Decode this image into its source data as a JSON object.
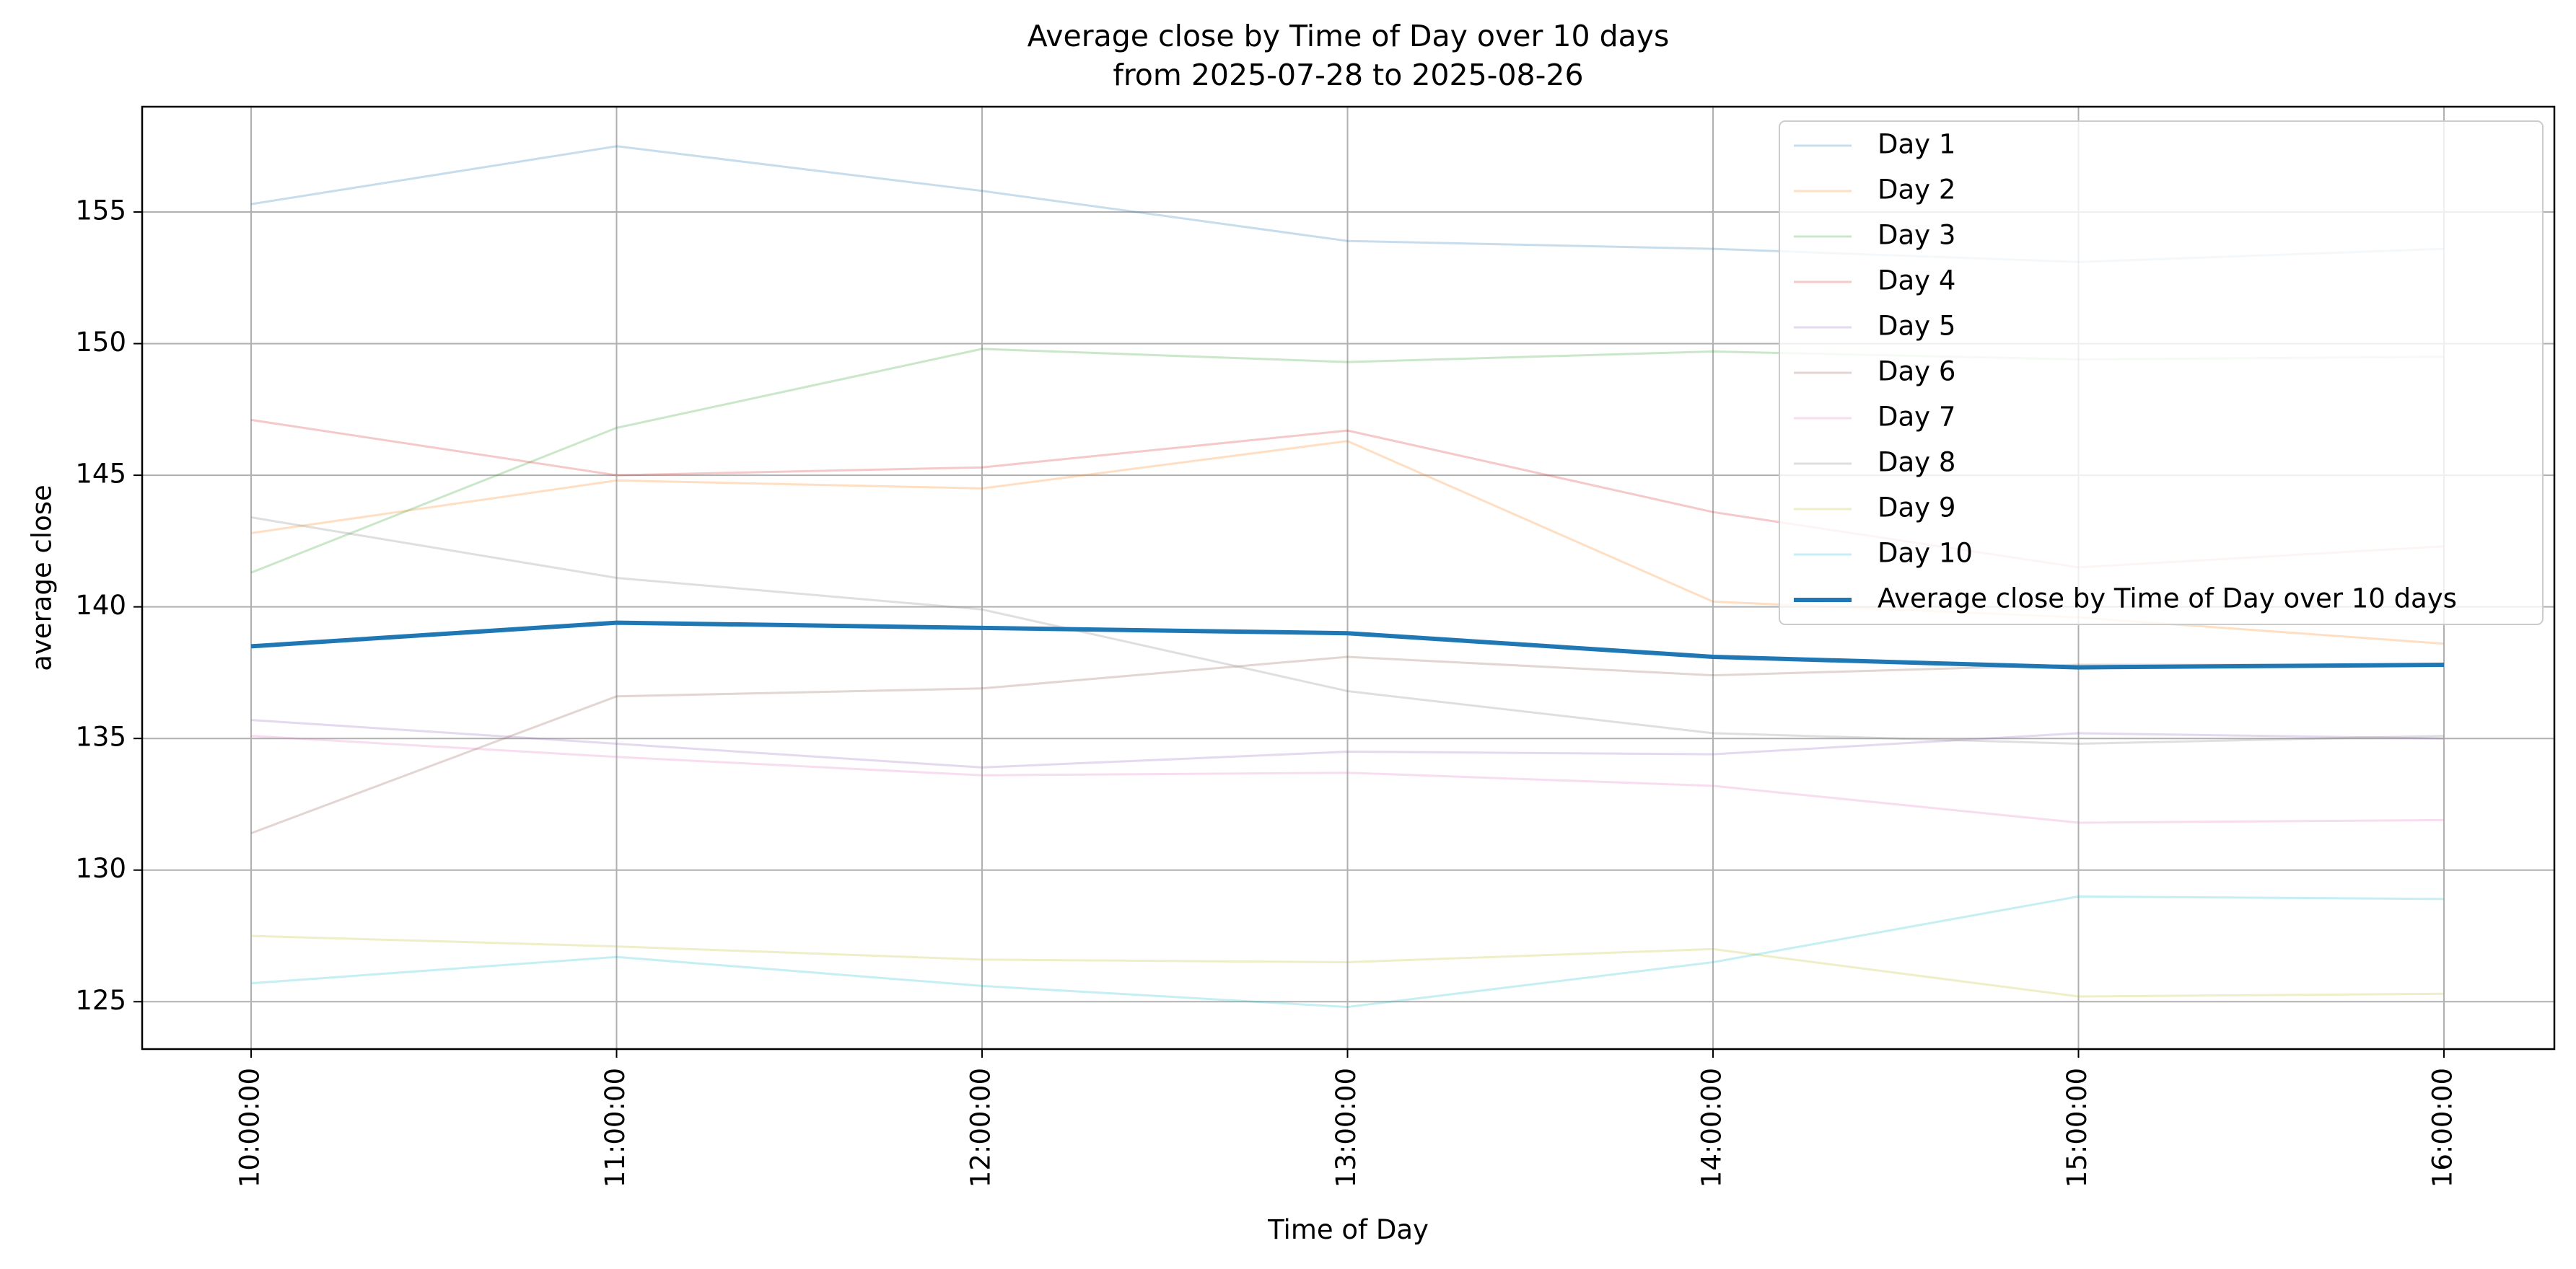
{
  "chart_data": {
    "type": "line",
    "title": "Average close by Time of Day over 10 days",
    "subtitle": "from 2025-07-28 to 2025-08-26",
    "xlabel": "Time of Day",
    "ylabel": "average close",
    "categories": [
      "10:00:00",
      "11:00:00",
      "12:00:00",
      "13:00:00",
      "14:00:00",
      "15:00:00",
      "16:00:00"
    ],
    "ylim": [
      123.2,
      159.0
    ],
    "yticks": [
      125,
      130,
      135,
      140,
      145,
      150,
      155
    ],
    "grid": true,
    "legend_position": "top-right",
    "series": [
      {
        "name": "Day 1",
        "color": "#1f77b4",
        "values": [
          155.3,
          157.5,
          155.8,
          153.9,
          153.6,
          153.1,
          153.6
        ]
      },
      {
        "name": "Day 2",
        "color": "#ff7f0e",
        "values": [
          142.8,
          144.8,
          144.5,
          146.3,
          140.2,
          139.6,
          138.6
        ]
      },
      {
        "name": "Day 3",
        "color": "#2ca02c",
        "values": [
          141.3,
          146.8,
          149.8,
          149.3,
          149.7,
          149.4,
          149.5
        ]
      },
      {
        "name": "Day 4",
        "color": "#d62728",
        "values": [
          147.1,
          145.0,
          145.3,
          146.7,
          143.6,
          141.5,
          142.3
        ]
      },
      {
        "name": "Day 5",
        "color": "#9467bd",
        "values": [
          135.7,
          134.8,
          133.9,
          134.5,
          134.4,
          135.2,
          135.0
        ]
      },
      {
        "name": "Day 6",
        "color": "#8c564b",
        "values": [
          131.4,
          136.6,
          136.9,
          138.1,
          137.4,
          137.8,
          137.8
        ]
      },
      {
        "name": "Day 7",
        "color": "#e377c2",
        "values": [
          135.1,
          134.3,
          133.6,
          133.7,
          133.2,
          131.8,
          131.9
        ]
      },
      {
        "name": "Day 8",
        "color": "#7f7f7f",
        "values": [
          143.4,
          141.1,
          139.9,
          136.8,
          135.2,
          134.8,
          135.1
        ]
      },
      {
        "name": "Day 9",
        "color": "#bcbd22",
        "values": [
          127.5,
          127.1,
          126.6,
          126.5,
          127.0,
          125.2,
          125.3
        ]
      },
      {
        "name": "Day 10",
        "color": "#17becf",
        "values": [
          125.7,
          126.7,
          125.6,
          124.8,
          126.5,
          129.0,
          128.9
        ]
      },
      {
        "name": "Average close by Time of Day over 10 days",
        "color": "#1f77b4",
        "values": [
          138.5,
          139.4,
          139.2,
          139.0,
          138.1,
          137.7,
          137.8
        ]
      }
    ]
  }
}
